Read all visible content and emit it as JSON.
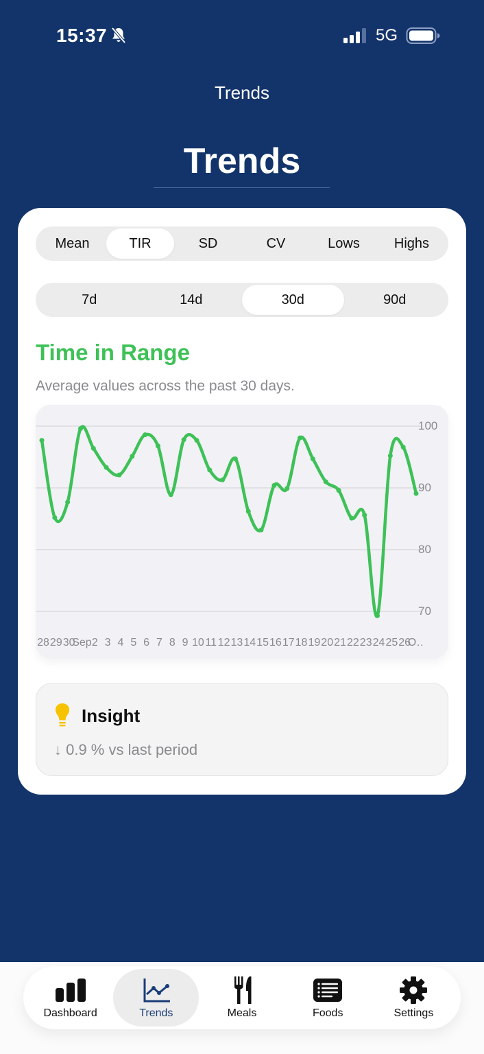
{
  "status_bar": {
    "time": "15:37",
    "network": "5G",
    "icons": [
      "bell-slash-icon",
      "cellular-signal-icon",
      "battery-icon"
    ]
  },
  "nav": {
    "title": "Trends"
  },
  "page": {
    "title": "Trends"
  },
  "metric_tabs": [
    {
      "label": "Mean",
      "active": false
    },
    {
      "label": "TIR",
      "active": true
    },
    {
      "label": "SD",
      "active": false
    },
    {
      "label": "CV",
      "active": false
    },
    {
      "label": "Lows",
      "active": false
    },
    {
      "label": "Highs",
      "active": false
    }
  ],
  "range_tabs": [
    {
      "label": "7d",
      "active": false
    },
    {
      "label": "14d",
      "active": false
    },
    {
      "label": "30d",
      "active": true
    },
    {
      "label": "90d",
      "active": false
    }
  ],
  "metric": {
    "title": "Time in Range",
    "subtitle": "Average values across the past 30 days.",
    "color": "#3ec157"
  },
  "chart_data": {
    "type": "line",
    "title": "Time in Range",
    "xlabel": "",
    "ylabel": "",
    "ylim": [
      67,
      103
    ],
    "y_ticks": [
      100,
      90,
      80,
      70
    ],
    "y_axis_position": "right",
    "grid": true,
    "legend": null,
    "x": [
      "28",
      "29",
      "30",
      "Sep",
      "2",
      "3",
      "4",
      "5",
      "6",
      "7",
      "8",
      "9",
      "10",
      "11",
      "12",
      "13",
      "14",
      "15",
      "16",
      "17",
      "18",
      "19",
      "20",
      "21",
      "22",
      "23",
      "24",
      "25",
      "26",
      "O…"
    ],
    "series": [
      {
        "name": "Time in Range",
        "color": "#3ec157",
        "values": [
          97.7,
          85.2,
          87.7,
          99.6,
          96.4,
          93.3,
          92.1,
          95.1,
          98.6,
          96.8,
          88.9,
          97.8,
          97.7,
          92.9,
          91.3,
          94.7,
          86.2,
          83.2,
          90.4,
          89.9,
          98.1,
          94.7,
          91.0,
          89.6,
          85.1,
          85.6,
          69.3,
          95.2,
          96.6,
          89.1
        ]
      }
    ],
    "x_labels_truncated": "28 29 30 Sep 2 3 4 5 6 7 8 9 10 11 12 13 14 15 16 17 18 19 20 21 22 23 24 25 26 O..."
  },
  "insight": {
    "title": "Insight",
    "text": "↓ 0.9 % vs last period",
    "icon": "lightbulb-icon"
  },
  "tabbar": [
    {
      "label": "Dashboard",
      "icon": "bar-chart-icon",
      "active": false
    },
    {
      "label": "Trends",
      "icon": "line-chart-icon",
      "active": true
    },
    {
      "label": "Meals",
      "icon": "fork-knife-icon",
      "active": false
    },
    {
      "label": "Foods",
      "icon": "list-icon",
      "active": false
    },
    {
      "label": "Settings",
      "icon": "gear-icon",
      "active": false
    }
  ]
}
